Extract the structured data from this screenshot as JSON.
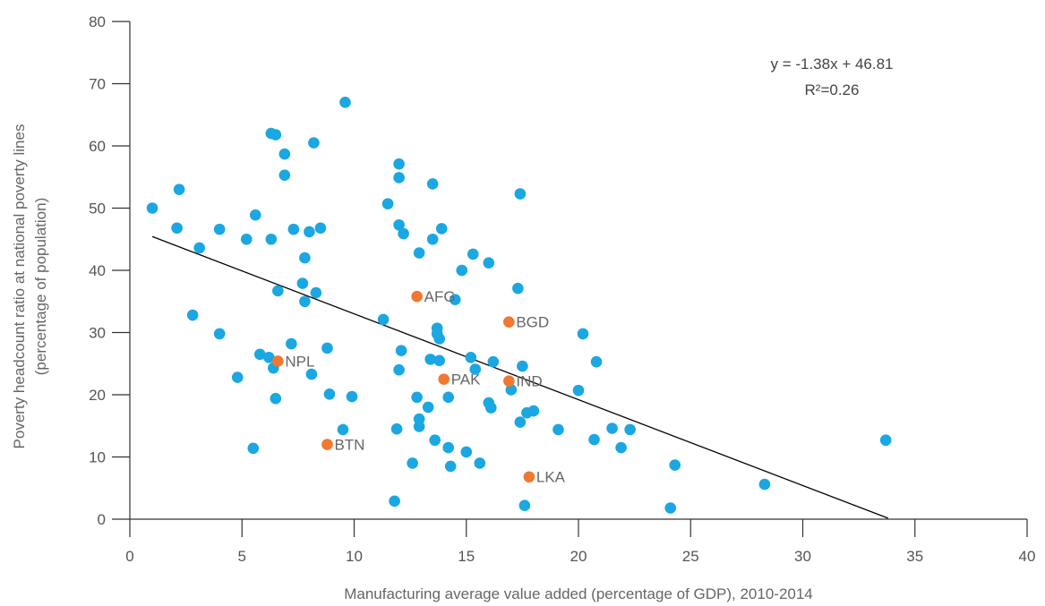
{
  "chart_data": {
    "type": "scatter",
    "xlabel": "Manufacturing average value added (percentage of GDP), 2010-2014",
    "ylabel_lines": [
      "Poverty headcount ratio at national poverty lines",
      "(percentage of population)"
    ],
    "xlim": [
      0,
      40
    ],
    "ylim": [
      0,
      80
    ],
    "x_ticks": [
      0,
      5,
      10,
      15,
      20,
      25,
      30,
      35,
      40
    ],
    "y_ticks": [
      0,
      10,
      20,
      30,
      40,
      50,
      60,
      70,
      80
    ],
    "grid": false,
    "colors": {
      "points": "#1aa7e2",
      "highlight": "#f07830",
      "trendline": "#000000",
      "axis": "#333333"
    },
    "trendline": {
      "slope": -1.38,
      "intercept": 46.81,
      "x_range": [
        1,
        33.8
      ],
      "equation": "y = -1.38x + 46.81",
      "r2_text": "R²=0.26"
    },
    "points": [
      [
        1.0,
        50.0
      ],
      [
        2.2,
        53.0
      ],
      [
        2.1,
        46.8
      ],
      [
        3.1,
        43.6
      ],
      [
        2.8,
        32.8
      ],
      [
        4.0,
        46.6
      ],
      [
        4.0,
        29.8
      ],
      [
        4.8,
        22.8
      ],
      [
        5.2,
        45.0
      ],
      [
        5.6,
        48.9
      ],
      [
        5.5,
        11.4
      ],
      [
        5.8,
        26.5
      ],
      [
        6.2,
        26.0
      ],
      [
        6.3,
        45.0
      ],
      [
        6.4,
        24.3
      ],
      [
        6.3,
        62.0
      ],
      [
        6.5,
        61.8
      ],
      [
        6.6,
        36.7
      ],
      [
        6.5,
        19.4
      ],
      [
        6.9,
        58.7
      ],
      [
        6.9,
        55.3
      ],
      [
        7.2,
        28.2
      ],
      [
        7.3,
        46.6
      ],
      [
        7.7,
        37.9
      ],
      [
        7.8,
        42.0
      ],
      [
        7.8,
        35.0
      ],
      [
        8.0,
        46.2
      ],
      [
        8.1,
        23.3
      ],
      [
        8.2,
        60.5
      ],
      [
        8.3,
        36.4
      ],
      [
        8.5,
        46.8
      ],
      [
        8.8,
        27.5
      ],
      [
        8.9,
        20.1
      ],
      [
        9.5,
        14.4
      ],
      [
        9.6,
        67.0
      ],
      [
        9.9,
        19.7
      ],
      [
        11.3,
        32.1
      ],
      [
        11.5,
        50.7
      ],
      [
        11.8,
        2.9
      ],
      [
        11.9,
        14.5
      ],
      [
        12.0,
        47.3
      ],
      [
        12.0,
        57.1
      ],
      [
        12.0,
        54.9
      ],
      [
        12.0,
        24.0
      ],
      [
        12.1,
        27.1
      ],
      [
        12.2,
        45.9
      ],
      [
        12.6,
        9.0
      ],
      [
        12.8,
        19.6
      ],
      [
        12.9,
        16.1
      ],
      [
        12.9,
        42.8
      ],
      [
        12.9,
        14.9
      ],
      [
        13.3,
        18.0
      ],
      [
        13.4,
        25.7
      ],
      [
        13.5,
        53.9
      ],
      [
        13.5,
        45.0
      ],
      [
        13.6,
        12.7
      ],
      [
        13.7,
        30.7
      ],
      [
        13.7,
        29.8
      ],
      [
        13.8,
        29.0
      ],
      [
        13.8,
        25.5
      ],
      [
        13.9,
        46.7
      ],
      [
        14.2,
        19.6
      ],
      [
        14.2,
        11.5
      ],
      [
        14.3,
        8.5
      ],
      [
        14.5,
        35.3
      ],
      [
        14.8,
        40.0
      ],
      [
        15.0,
        10.8
      ],
      [
        15.2,
        26.0
      ],
      [
        15.3,
        42.6
      ],
      [
        15.4,
        24.1
      ],
      [
        15.6,
        9.0
      ],
      [
        16.0,
        41.2
      ],
      [
        16.0,
        18.7
      ],
      [
        16.1,
        17.9
      ],
      [
        16.2,
        25.3
      ],
      [
        17.0,
        20.8
      ],
      [
        17.3,
        37.1
      ],
      [
        17.4,
        52.3
      ],
      [
        17.4,
        15.6
      ],
      [
        17.5,
        24.6
      ],
      [
        17.6,
        2.2
      ],
      [
        17.7,
        17.1
      ],
      [
        18.0,
        17.4
      ],
      [
        19.1,
        14.4
      ],
      [
        20.0,
        20.7
      ],
      [
        20.2,
        29.8
      ],
      [
        20.7,
        12.8
      ],
      [
        20.8,
        25.3
      ],
      [
        21.5,
        14.6
      ],
      [
        21.9,
        11.5
      ],
      [
        22.3,
        14.4
      ],
      [
        24.1,
        1.8
      ],
      [
        24.3,
        8.7
      ],
      [
        28.3,
        5.6
      ],
      [
        33.7,
        12.7
      ]
    ],
    "highlights": [
      {
        "label": "AFG",
        "x": 12.8,
        "y": 35.8
      },
      {
        "label": "BGD",
        "x": 16.9,
        "y": 31.7
      },
      {
        "label": "NPL",
        "x": 6.6,
        "y": 25.4
      },
      {
        "label": "PAK",
        "x": 14.0,
        "y": 22.5
      },
      {
        "label": "IND",
        "x": 16.9,
        "y": 22.2
      },
      {
        "label": "BTN",
        "x": 8.8,
        "y": 12.0
      },
      {
        "label": "LKA",
        "x": 17.8,
        "y": 6.8
      }
    ]
  }
}
